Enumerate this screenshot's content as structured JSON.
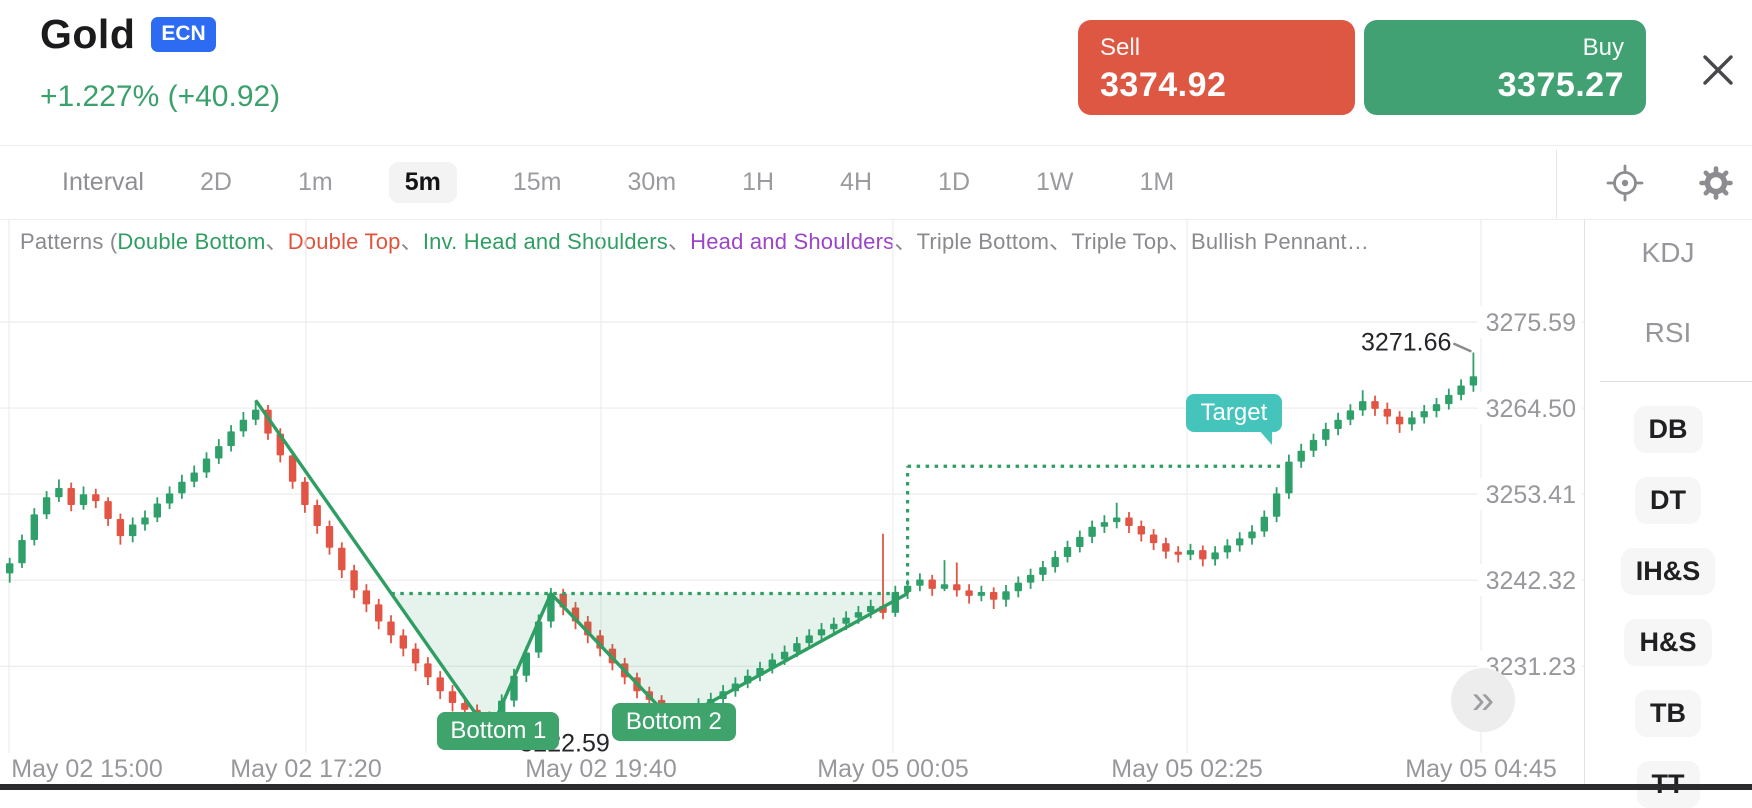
{
  "header": {
    "title": "Gold",
    "badge": "ECN",
    "change": "+1.227% (+40.92)",
    "sell_label": "Sell",
    "sell_price": "3374.92",
    "buy_label": "Buy",
    "buy_price": "3375.27",
    "close_icon": "x",
    "accent_sell": "#dd5743",
    "accent_buy": "#41a173",
    "badge_color": "#2c6bf2",
    "change_color": "#3aa16d"
  },
  "toolbar": {
    "interval_label": "Interval",
    "intervals": [
      "2D",
      "1m",
      "5m",
      "15m",
      "30m",
      "1H",
      "4H",
      "1D",
      "1W",
      "1M"
    ],
    "selected_interval": "5m",
    "icons": [
      "crosshair-icon",
      "gear-icon"
    ]
  },
  "legend": {
    "segments": [
      {
        "text": "Patterns (",
        "color": "#8a8a8e"
      },
      {
        "text": "Double Bottom",
        "color": "#2f9e63"
      },
      {
        "text": "、",
        "color": "#8a8a8e"
      },
      {
        "text": "Double Top",
        "color": "#e0543e"
      },
      {
        "text": "、",
        "color": "#8a8a8e"
      },
      {
        "text": "Inv. Head and Shoulders",
        "color": "#2f9e63"
      },
      {
        "text": "、",
        "color": "#8a8a8e"
      },
      {
        "text": "Head and Shoulders",
        "color": "#9b45c9"
      },
      {
        "text": "、",
        "color": "#8a8a8e"
      },
      {
        "text": "Triple Bottom",
        "color": "#8a8a8e"
      },
      {
        "text": "、",
        "color": "#8a8a8e"
      },
      {
        "text": "Triple Top",
        "color": "#8a8a8e"
      },
      {
        "text": "、",
        "color": "#8a8a8e"
      },
      {
        "text": "Bullish Pennant…",
        "color": "#8a8a8e"
      }
    ]
  },
  "chart_data": {
    "type": "candlestick",
    "symbol": "Gold",
    "interval": "5m",
    "colors": {
      "up": "#2fa06a",
      "down": "#e25544",
      "pattern_line": "#2f9e63",
      "pattern_fill": "rgba(47,158,99,0.12)",
      "grid": "#ececee",
      "axis_text": "#98989c"
    },
    "y_axis": {
      "ticks": [
        3275.59,
        3264.5,
        3253.41,
        3242.32,
        3231.23
      ]
    },
    "x_axis": {
      "labels": [
        "May 02 15:00",
        "May 02 17:20",
        "May 02 19:40",
        "May 05 00:05",
        "May 05 02:25",
        "May 05 04:45"
      ]
    },
    "pattern": {
      "name": "Double Bottom",
      "peak": {
        "index": 20,
        "price": 3265.5
      },
      "bottom1": {
        "index": 39,
        "price": 3222.59
      },
      "apex": {
        "index": 44,
        "price": 3240.6
      },
      "bottom2": {
        "index": 54,
        "price": 3224.0
      },
      "breakout_index": 73,
      "neckline_price": 3240.6,
      "target_price": 3257.0,
      "target_end_index": 104,
      "high": {
        "index": 119,
        "price": 3271.66
      }
    },
    "annotations": {
      "bottom1_label": "Bottom 1",
      "bottom2_label": "Bottom 2",
      "target_label": "Target",
      "low_label": "3222.59",
      "high_label": "3271.66"
    },
    "candles": [
      [
        3243.2,
        3245.2,
        3242.0,
        3244.5
      ],
      [
        3244.5,
        3248.2,
        3243.9,
        3247.5
      ],
      [
        3247.5,
        3251.6,
        3246.8,
        3250.8
      ],
      [
        3250.8,
        3253.8,
        3250.2,
        3253.0
      ],
      [
        3253.0,
        3255.3,
        3252.4,
        3254.2
      ],
      [
        3254.2,
        3254.9,
        3251.2,
        3252.0
      ],
      [
        3252.0,
        3254.4,
        3251.4,
        3253.4
      ],
      [
        3253.4,
        3254.1,
        3251.6,
        3252.5
      ],
      [
        3252.5,
        3253.0,
        3249.3,
        3250.2
      ],
      [
        3250.2,
        3250.9,
        3246.9,
        3248.0
      ],
      [
        3248.0,
        3250.4,
        3247.2,
        3249.5
      ],
      [
        3249.5,
        3251.3,
        3248.7,
        3250.4
      ],
      [
        3250.4,
        3253.0,
        3249.8,
        3252.2
      ],
      [
        3252.2,
        3254.4,
        3251.5,
        3253.5
      ],
      [
        3253.5,
        3255.9,
        3252.8,
        3255.0
      ],
      [
        3255.0,
        3257.1,
        3254.3,
        3256.2
      ],
      [
        3256.2,
        3258.8,
        3255.5,
        3258.0
      ],
      [
        3258.0,
        3260.5,
        3257.3,
        3259.6
      ],
      [
        3259.6,
        3262.3,
        3258.9,
        3261.5
      ],
      [
        3261.5,
        3264.0,
        3260.8,
        3263.0
      ],
      [
        3263.0,
        3265.5,
        3262.3,
        3264.3
      ],
      [
        3264.3,
        3264.9,
        3260.4,
        3261.2
      ],
      [
        3261.2,
        3261.9,
        3257.5,
        3258.4
      ],
      [
        3258.4,
        3259.0,
        3254.1,
        3255.0
      ],
      [
        3255.0,
        3255.6,
        3251.0,
        3252.0
      ],
      [
        3252.0,
        3252.7,
        3248.3,
        3249.3
      ],
      [
        3249.3,
        3250.0,
        3245.6,
        3246.5
      ],
      [
        3246.5,
        3247.2,
        3242.6,
        3243.6
      ],
      [
        3243.6,
        3244.3,
        3240.0,
        3241.0
      ],
      [
        3241.0,
        3241.8,
        3238.2,
        3239.2
      ],
      [
        3239.2,
        3239.9,
        3236.0,
        3237.0
      ],
      [
        3237.0,
        3237.8,
        3234.2,
        3235.2
      ],
      [
        3235.2,
        3236.0,
        3232.5,
        3233.5
      ],
      [
        3233.5,
        3234.2,
        3230.6,
        3231.6
      ],
      [
        3231.6,
        3232.4,
        3228.8,
        3229.8
      ],
      [
        3229.8,
        3230.6,
        3227.0,
        3228.0
      ],
      [
        3228.0,
        3228.8,
        3225.4,
        3226.5
      ],
      [
        3226.5,
        3227.3,
        3224.5,
        3225.6
      ],
      [
        3225.6,
        3226.3,
        3223.5,
        3224.6
      ],
      [
        3224.6,
        3225.4,
        3222.59,
        3223.6
      ],
      [
        3223.6,
        3227.6,
        3223.1,
        3226.8
      ],
      [
        3226.8,
        3230.9,
        3226.0,
        3230.0
      ],
      [
        3230.0,
        3233.8,
        3229.2,
        3233.0
      ],
      [
        3233.0,
        3237.9,
        3232.3,
        3237.0
      ],
      [
        3237.0,
        3241.3,
        3236.2,
        3240.6
      ],
      [
        3240.6,
        3241.2,
        3237.8,
        3238.8
      ],
      [
        3238.8,
        3239.5,
        3236.0,
        3237.0
      ],
      [
        3237.0,
        3237.7,
        3234.2,
        3235.2
      ],
      [
        3235.2,
        3235.9,
        3232.5,
        3233.5
      ],
      [
        3233.5,
        3234.1,
        3230.7,
        3231.6
      ],
      [
        3231.6,
        3232.3,
        3228.9,
        3229.8
      ],
      [
        3229.8,
        3230.4,
        3227.1,
        3228.0
      ],
      [
        3228.0,
        3228.6,
        3225.9,
        3226.9
      ],
      [
        3226.9,
        3227.5,
        3224.8,
        3225.8
      ],
      [
        3225.8,
        3226.4,
        3224.0,
        3224.9
      ],
      [
        3224.9,
        3226.5,
        3224.2,
        3225.7
      ],
      [
        3225.7,
        3227.1,
        3225.0,
        3226.3
      ],
      [
        3226.3,
        3227.8,
        3225.6,
        3227.0
      ],
      [
        3227.0,
        3228.8,
        3226.3,
        3228.0
      ],
      [
        3228.0,
        3229.8,
        3227.3,
        3229.0
      ],
      [
        3229.0,
        3230.8,
        3228.4,
        3230.0
      ],
      [
        3230.0,
        3231.8,
        3229.3,
        3231.0
      ],
      [
        3231.0,
        3232.9,
        3230.3,
        3232.1
      ],
      [
        3232.1,
        3233.9,
        3231.4,
        3233.1
      ],
      [
        3233.1,
        3235.0,
        3232.4,
        3234.2
      ],
      [
        3234.2,
        3236.0,
        3233.5,
        3235.2
      ],
      [
        3235.2,
        3236.8,
        3234.4,
        3236.0
      ],
      [
        3236.0,
        3237.5,
        3235.2,
        3236.7
      ],
      [
        3236.7,
        3238.3,
        3235.9,
        3237.5
      ],
      [
        3237.5,
        3239.0,
        3236.7,
        3238.2
      ],
      [
        3238.2,
        3239.8,
        3237.4,
        3239.0
      ],
      [
        3239.0,
        3248.3,
        3237.3,
        3238.1
      ],
      [
        3238.1,
        3241.6,
        3237.6,
        3240.8
      ],
      [
        3240.8,
        3242.4,
        3239.9,
        3241.6
      ],
      [
        3241.6,
        3243.2,
        3240.9,
        3242.4
      ],
      [
        3242.4,
        3243.0,
        3240.3,
        3241.2
      ],
      [
        3241.2,
        3244.9,
        3240.9,
        3241.8
      ],
      [
        3241.8,
        3244.6,
        3240.2,
        3241.0
      ],
      [
        3241.0,
        3241.8,
        3239.3,
        3240.3
      ],
      [
        3240.3,
        3241.6,
        3239.6,
        3240.8
      ],
      [
        3240.8,
        3241.4,
        3238.6,
        3239.8
      ],
      [
        3239.8,
        3241.7,
        3238.9,
        3240.9
      ],
      [
        3240.9,
        3242.8,
        3240.1,
        3242.0
      ],
      [
        3242.0,
        3243.8,
        3241.2,
        3243.0
      ],
      [
        3243.0,
        3244.8,
        3242.2,
        3244.0
      ],
      [
        3244.0,
        3246.1,
        3243.3,
        3245.3
      ],
      [
        3245.3,
        3247.4,
        3244.6,
        3246.6
      ],
      [
        3246.6,
        3248.7,
        3245.9,
        3247.9
      ],
      [
        3247.9,
        3250.0,
        3247.1,
        3249.2
      ],
      [
        3249.2,
        3250.7,
        3248.4,
        3249.8
      ],
      [
        3249.8,
        3252.3,
        3249.0,
        3250.4
      ],
      [
        3250.4,
        3251.1,
        3248.4,
        3249.3
      ],
      [
        3249.3,
        3250.0,
        3247.3,
        3248.2
      ],
      [
        3248.2,
        3248.9,
        3246.2,
        3247.1
      ],
      [
        3247.1,
        3247.8,
        3245.1,
        3246.0
      ],
      [
        3246.0,
        3246.7,
        3244.6,
        3245.6
      ],
      [
        3245.6,
        3247.0,
        3244.9,
        3246.2
      ],
      [
        3246.2,
        3246.8,
        3244.1,
        3245.0
      ],
      [
        3245.0,
        3246.7,
        3244.2,
        3245.9
      ],
      [
        3245.9,
        3247.6,
        3245.1,
        3246.8
      ],
      [
        3246.8,
        3248.5,
        3246.0,
        3247.7
      ],
      [
        3247.7,
        3249.4,
        3246.9,
        3248.6
      ],
      [
        3248.6,
        3251.3,
        3247.9,
        3250.5
      ],
      [
        3250.5,
        3254.3,
        3249.8,
        3253.5
      ],
      [
        3253.5,
        3258.5,
        3252.8,
        3257.6
      ],
      [
        3257.6,
        3259.9,
        3256.8,
        3259.0
      ],
      [
        3259.0,
        3261.2,
        3258.2,
        3260.4
      ],
      [
        3260.4,
        3262.6,
        3259.6,
        3261.8
      ],
      [
        3261.8,
        3263.9,
        3261.0,
        3263.0
      ],
      [
        3263.0,
        3265.0,
        3262.3,
        3264.2
      ],
      [
        3264.2,
        3266.8,
        3263.5,
        3265.4
      ],
      [
        3265.4,
        3266.1,
        3263.5,
        3264.4
      ],
      [
        3264.4,
        3265.2,
        3262.4,
        3263.4
      ],
      [
        3263.4,
        3264.1,
        3261.3,
        3262.4
      ],
      [
        3262.4,
        3264.1,
        3261.6,
        3263.3
      ],
      [
        3263.3,
        3264.9,
        3262.5,
        3264.1
      ],
      [
        3264.1,
        3265.8,
        3263.3,
        3265.0
      ],
      [
        3265.0,
        3267.0,
        3264.3,
        3266.2
      ],
      [
        3266.2,
        3268.2,
        3265.5,
        3267.4
      ],
      [
        3267.4,
        3271.66,
        3266.6,
        3268.6
      ]
    ]
  },
  "sidebar": {
    "indicators": [
      {
        "label": "KDJ"
      },
      {
        "label": "RSI"
      }
    ],
    "patterns": [
      {
        "label": "DB"
      },
      {
        "label": "DT"
      },
      {
        "label": "IH&S"
      },
      {
        "label": "H&S"
      },
      {
        "label": "TB"
      },
      {
        "label": "TT"
      }
    ]
  },
  "more_button": {
    "glyph": "»"
  }
}
